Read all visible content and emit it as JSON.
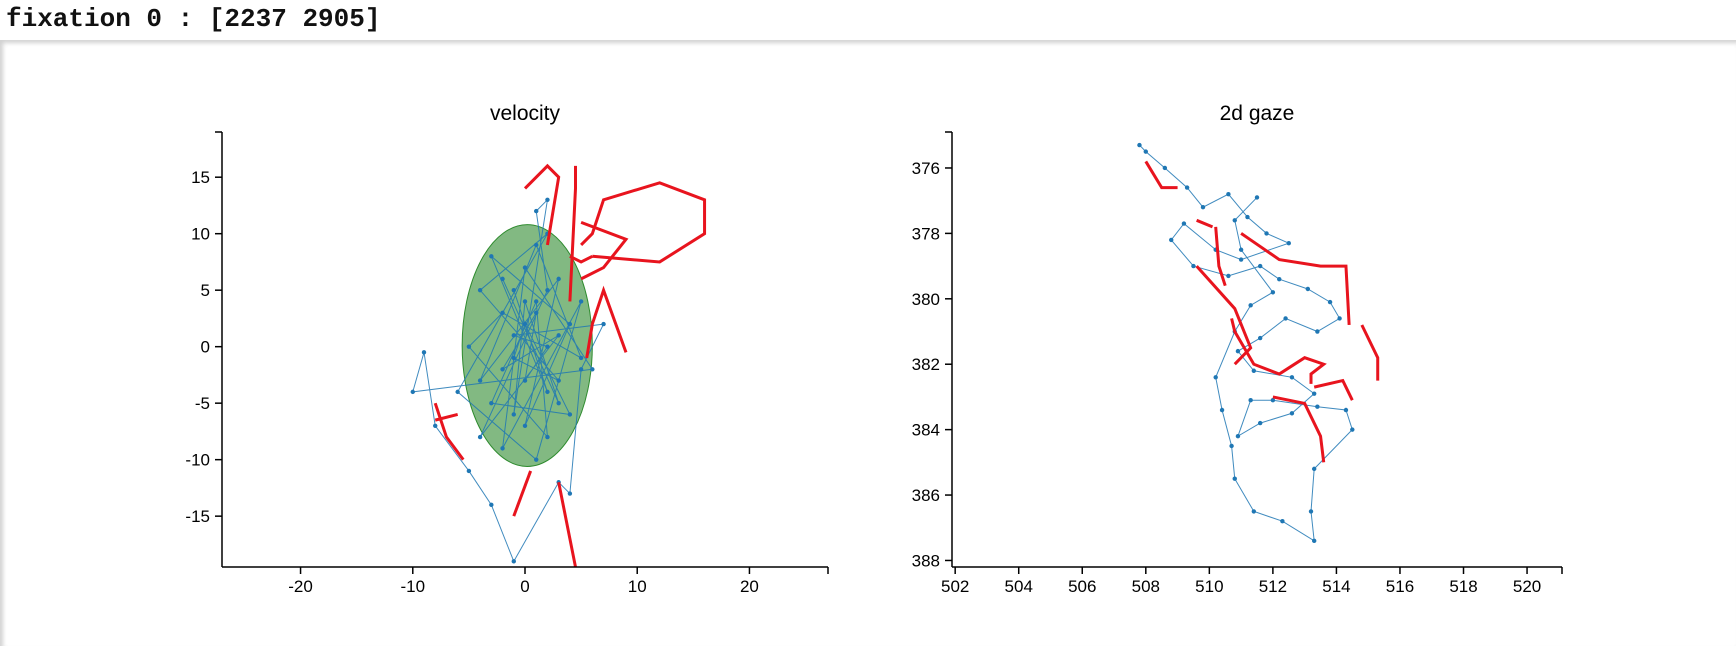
{
  "header": {
    "text": "fixation 0 : [2237 2905]"
  },
  "colors": {
    "points": "#1f77b4",
    "saccade": "#e8141e",
    "ellipse": "#2e8b2e"
  },
  "chart_data": [
    {
      "type": "scatter",
      "title": "velocity",
      "xlabel": "",
      "ylabel": "",
      "xlim": [
        -27,
        27
      ],
      "ylim": [
        -19.5,
        19
      ],
      "xticks": [
        -20,
        -10,
        0,
        10,
        20
      ],
      "yticks": [
        15,
        10,
        5,
        0,
        -5,
        -10,
        -15
      ],
      "xtick_labels": [
        "-20",
        "-10",
        "0",
        "10",
        "20"
      ],
      "ytick_labels": [
        "15",
        "10",
        "5",
        "0",
        "-5",
        "-10",
        "-15"
      ],
      "ellipse": {
        "cx": 0.2,
        "cy": 0.1,
        "rx": 5.8,
        "ry": 10.7
      },
      "series": [
        {
          "name": "samples",
          "style": "line-markers",
          "points": [
            [
              -1,
              5
            ],
            [
              2,
              -4
            ],
            [
              -3,
              8
            ],
            [
              4,
              2
            ],
            [
              0,
              -7
            ],
            [
              3,
              6
            ],
            [
              -4,
              -3
            ],
            [
              1,
              9
            ],
            [
              5,
              -1
            ],
            [
              -2,
              3
            ],
            [
              -5,
              0
            ],
            [
              2,
              -8
            ],
            [
              1,
              4
            ],
            [
              -3,
              -5
            ],
            [
              4,
              -6
            ],
            [
              0,
              2
            ],
            [
              -1,
              -1
            ],
            [
              3,
              -3
            ],
            [
              -4,
              5
            ],
            [
              2,
              10
            ],
            [
              -6,
              -4
            ],
            [
              1,
              -10
            ],
            [
              5,
              4
            ],
            [
              -2,
              -9
            ],
            [
              0,
              7
            ],
            [
              6,
              -2
            ],
            [
              -10,
              -4
            ],
            [
              -9,
              -0.5
            ],
            [
              -8,
              -7
            ],
            [
              -5,
              -11
            ],
            [
              -3,
              -14
            ],
            [
              -1,
              -19
            ],
            [
              3,
              -12
            ],
            [
              4,
              -13
            ],
            [
              5,
              -2
            ],
            [
              7,
              2
            ],
            [
              -1,
              1
            ],
            [
              2,
              0
            ],
            [
              0,
              -3
            ],
            [
              1,
              3
            ],
            [
              -2,
              -2
            ],
            [
              3,
              1
            ],
            [
              -4,
              -8
            ],
            [
              2,
              5
            ],
            [
              1,
              12
            ],
            [
              2,
              13
            ],
            [
              -1,
              -6
            ],
            [
              0,
              4
            ],
            [
              3,
              -5
            ],
            [
              -2,
              6
            ]
          ]
        },
        {
          "name": "saccades",
          "style": "line",
          "segments": [
            [
              [
                0.5,
                -11
              ],
              [
                -1,
                -15
              ]
            ],
            [
              [
                3,
                -12
              ],
              [
                4,
                -17
              ],
              [
                4.5,
                -19.5
              ]
            ],
            [
              [
                -8,
                -5
              ],
              [
                -7,
                -8
              ],
              [
                -5.5,
                -10
              ]
            ],
            [
              [
                -8,
                -6.5
              ],
              [
                -6,
                -6
              ]
            ],
            [
              [
                5.5,
                -1
              ],
              [
                6,
                2
              ],
              [
                7,
                5
              ],
              [
                9,
                -0.5
              ]
            ],
            [
              [
                4,
                4
              ],
              [
                4.5,
                14
              ],
              [
                4.5,
                16
              ]
            ],
            [
              [
                2,
                9
              ],
              [
                3,
                15
              ],
              [
                2,
                16
              ],
              [
                0,
                14
              ]
            ],
            [
              [
                5,
                11
              ],
              [
                9,
                9.5
              ],
              [
                7,
                7
              ],
              [
                5,
                6
              ]
            ],
            [
              [
                5,
                9
              ],
              [
                6,
                10
              ],
              [
                7,
                13
              ],
              [
                12,
                14.5
              ],
              [
                16,
                13
              ],
              [
                16,
                10
              ],
              [
                12,
                7.5
              ],
              [
                6,
                8
              ]
            ],
            [
              [
                6,
                8
              ],
              [
                5,
                7.5
              ],
              [
                4,
                8
              ]
            ]
          ]
        }
      ]
    },
    {
      "type": "scatter",
      "title": "2d gaze",
      "xlabel": "",
      "ylabel": "",
      "xlim": [
        501.9,
        521.1
      ],
      "ylim": [
        388.2,
        374.9
      ],
      "xticks": [
        502,
        504,
        506,
        508,
        510,
        512,
        514,
        516,
        518,
        520
      ],
      "yticks": [
        376,
        378,
        380,
        382,
        384,
        386,
        388
      ],
      "xtick_labels": [
        "502",
        "504",
        "506",
        "508",
        "510",
        "512",
        "514",
        "516",
        "518",
        "520"
      ],
      "ytick_labels": [
        "376",
        "378",
        "380",
        "382",
        "384",
        "386",
        "388"
      ],
      "series": [
        {
          "name": "samples",
          "style": "line-markers",
          "points": [
            [
              507.8,
              375.3
            ],
            [
              508.0,
              375.5
            ],
            [
              508.6,
              376.0
            ],
            [
              509.3,
              376.6
            ],
            [
              509.8,
              377.2
            ],
            [
              510.6,
              376.8
            ],
            [
              511.2,
              377.5
            ],
            [
              511.8,
              378.0
            ],
            [
              512.5,
              378.3
            ],
            [
              511.0,
              378.8
            ],
            [
              510.2,
              378.5
            ],
            [
              509.2,
              377.7
            ],
            [
              508.8,
              378.2
            ],
            [
              509.5,
              379.0
            ],
            [
              510.6,
              379.3
            ],
            [
              511.6,
              379.0
            ],
            [
              512.2,
              379.4
            ],
            [
              513.1,
              379.7
            ],
            [
              513.8,
              380.1
            ],
            [
              514.1,
              380.6
            ],
            [
              513.4,
              381.0
            ],
            [
              512.4,
              380.6
            ],
            [
              511.6,
              381.2
            ],
            [
              510.9,
              381.6
            ],
            [
              511.4,
              382.2
            ],
            [
              512.6,
              382.4
            ],
            [
              513.3,
              382.9
            ],
            [
              512.6,
              383.5
            ],
            [
              511.6,
              383.8
            ],
            [
              510.9,
              384.2
            ],
            [
              511.3,
              383.1
            ],
            [
              512.0,
              383.1
            ],
            [
              513.4,
              383.3
            ],
            [
              514.3,
              383.4
            ],
            [
              514.5,
              384.0
            ],
            [
              513.3,
              385.2
            ],
            [
              513.2,
              386.5
            ],
            [
              513.3,
              387.4
            ],
            [
              512.3,
              386.8
            ],
            [
              511.4,
              386.5
            ],
            [
              510.8,
              385.5
            ],
            [
              510.7,
              384.5
            ],
            [
              510.4,
              383.4
            ],
            [
              510.2,
              382.4
            ],
            [
              510.8,
              381.0
            ],
            [
              511.3,
              380.2
            ],
            [
              512.0,
              379.8
            ],
            [
              511.0,
              378.5
            ],
            [
              510.8,
              377.6
            ],
            [
              511.5,
              376.9
            ]
          ]
        },
        {
          "name": "saccades",
          "style": "line",
          "segments": [
            [
              [
                508.0,
                375.8
              ],
              [
                508.5,
                376.6
              ],
              [
                509.0,
                376.6
              ]
            ],
            [
              [
                509.6,
                377.6
              ],
              [
                510.1,
                377.8
              ]
            ],
            [
              [
                510.2,
                377.8
              ],
              [
                510.3,
                379.0
              ],
              [
                510.5,
                379.6
              ]
            ],
            [
              [
                511.0,
                378.0
              ],
              [
                511.3,
                378.2
              ],
              [
                512.2,
                378.8
              ],
              [
                513.5,
                379.0
              ],
              [
                514.3,
                379.0
              ],
              [
                514.4,
                380.8
              ]
            ],
            [
              [
                514.8,
                380.8
              ],
              [
                515.3,
                381.8
              ],
              [
                515.3,
                382.5
              ]
            ],
            [
              [
                510.7,
                380.6
              ],
              [
                510.8,
                381.0
              ],
              [
                511.4,
                382.0
              ],
              [
                512.2,
                382.3
              ],
              [
                513.0,
                381.8
              ],
              [
                513.6,
                382.0
              ],
              [
                513.2,
                382.3
              ],
              [
                513.2,
                382.6
              ]
            ],
            [
              [
                513.3,
                382.7
              ],
              [
                514.2,
                382.5
              ],
              [
                514.5,
                383.1
              ]
            ],
            [
              [
                512.0,
                383.0
              ],
              [
                513.0,
                383.2
              ],
              [
                513.5,
                384.2
              ],
              [
                513.6,
                385.0
              ]
            ],
            [
              [
                509.6,
                379.0
              ],
              [
                510.8,
                380.3
              ],
              [
                511.3,
                381.5
              ],
              [
                510.8,
                382.0
              ]
            ]
          ]
        }
      ]
    }
  ]
}
